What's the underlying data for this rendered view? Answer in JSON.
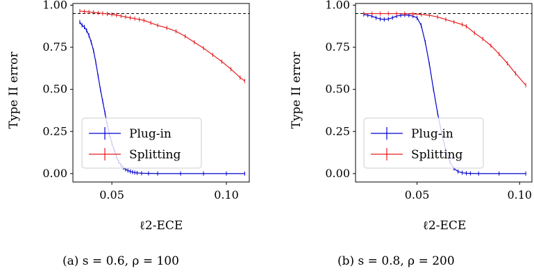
{
  "chart_data": [
    {
      "type": "line",
      "panel": "(a)",
      "caption": "(a) s = 0.6, ρ = 100",
      "xlabel": "ℓ2-ECE",
      "ylabel": "Type II error",
      "xlim": [
        0.033,
        0.11
      ],
      "ylim": [
        -0.05,
        1.01
      ],
      "xticks": [
        0.05,
        0.1
      ],
      "xtick_labels": [
        "0.05",
        "0.10"
      ],
      "yticks": [
        0.0,
        0.25,
        0.5,
        0.75,
        1.0
      ],
      "ytick_labels": [
        "0.00",
        "0.25",
        "0.50",
        "0.75",
        "1.00"
      ],
      "reference_line": 0.95,
      "legend": "lower-left",
      "grid": false,
      "series": [
        {
          "name": "Plug-in",
          "color": "#0000cc",
          "x": [
            0.036,
            0.037,
            0.038,
            0.039,
            0.04,
            0.041,
            0.042,
            0.043,
            0.044,
            0.045,
            0.046,
            0.047,
            0.048,
            0.049,
            0.05,
            0.051,
            0.052,
            0.053,
            0.054,
            0.055,
            0.056,
            0.057,
            0.058,
            0.059,
            0.06,
            0.061,
            0.063,
            0.066,
            0.07,
            0.08,
            0.09,
            0.1,
            0.108
          ],
          "y": [
            0.9,
            0.88,
            0.87,
            0.85,
            0.82,
            0.78,
            0.73,
            0.66,
            0.58,
            0.5,
            0.43,
            0.36,
            0.29,
            0.23,
            0.18,
            0.14,
            0.1,
            0.07,
            0.05,
            0.035,
            0.025,
            0.018,
            0.013,
            0.009,
            0.006,
            0.004,
            0.002,
            0.001,
            0.0,
            0.0,
            0.0,
            0.0,
            0.0
          ]
        },
        {
          "name": "Splitting",
          "color": "#e41a1c",
          "x": [
            0.036,
            0.038,
            0.04,
            0.042,
            0.044,
            0.046,
            0.048,
            0.05,
            0.052,
            0.054,
            0.056,
            0.058,
            0.06,
            0.062,
            0.064,
            0.067,
            0.07,
            0.074,
            0.078,
            0.082,
            0.086,
            0.09,
            0.094,
            0.098,
            0.102,
            0.106,
            0.108
          ],
          "y": [
            0.965,
            0.962,
            0.96,
            0.957,
            0.954,
            0.951,
            0.948,
            0.945,
            0.941,
            0.936,
            0.93,
            0.925,
            0.92,
            0.915,
            0.91,
            0.895,
            0.88,
            0.865,
            0.845,
            0.815,
            0.78,
            0.745,
            0.705,
            0.665,
            0.62,
            0.57,
            0.55
          ]
        }
      ]
    },
    {
      "type": "line",
      "panel": "(b)",
      "caption": "(b) s = 0.8, ρ = 200",
      "xlabel": "ℓ2-ECE",
      "ylabel": "Type II error",
      "xlim": [
        0.02,
        0.106
      ],
      "ylim": [
        -0.05,
        1.01
      ],
      "xticks": [
        0.05,
        0.1
      ],
      "xtick_labels": [
        "0.05",
        "0.10"
      ],
      "yticks": [
        0.0,
        0.25,
        0.5,
        0.75,
        1.0
      ],
      "ytick_labels": [
        "0.00",
        "0.25",
        "0.50",
        "0.75",
        "1.00"
      ],
      "reference_line": 0.95,
      "legend": "lower-left",
      "grid": false,
      "series": [
        {
          "name": "Plug-in",
          "color": "#0000cc",
          "x": [
            0.024,
            0.026,
            0.028,
            0.03,
            0.032,
            0.034,
            0.036,
            0.038,
            0.04,
            0.042,
            0.044,
            0.046,
            0.048,
            0.05,
            0.052,
            0.054,
            0.056,
            0.058,
            0.06,
            0.062,
            0.064,
            0.066,
            0.068,
            0.07,
            0.072,
            0.074,
            0.076,
            0.08,
            0.09,
            0.103
          ],
          "y": [
            0.945,
            0.94,
            0.935,
            0.925,
            0.918,
            0.915,
            0.918,
            0.925,
            0.935,
            0.94,
            0.942,
            0.94,
            0.935,
            0.925,
            0.88,
            0.78,
            0.65,
            0.5,
            0.36,
            0.24,
            0.14,
            0.07,
            0.03,
            0.012,
            0.005,
            0.002,
            0.001,
            0.0,
            0.0,
            0.0
          ]
        },
        {
          "name": "Splitting",
          "color": "#e41a1c",
          "x": [
            0.024,
            0.028,
            0.032,
            0.036,
            0.04,
            0.044,
            0.048,
            0.052,
            0.056,
            0.06,
            0.064,
            0.068,
            0.072,
            0.074,
            0.078,
            0.082,
            0.086,
            0.09,
            0.094,
            0.098,
            0.103
          ],
          "y": [
            0.95,
            0.95,
            0.95,
            0.95,
            0.95,
            0.949,
            0.948,
            0.945,
            0.94,
            0.93,
            0.915,
            0.9,
            0.885,
            0.875,
            0.835,
            0.8,
            0.76,
            0.71,
            0.655,
            0.595,
            0.525
          ]
        }
      ]
    }
  ]
}
